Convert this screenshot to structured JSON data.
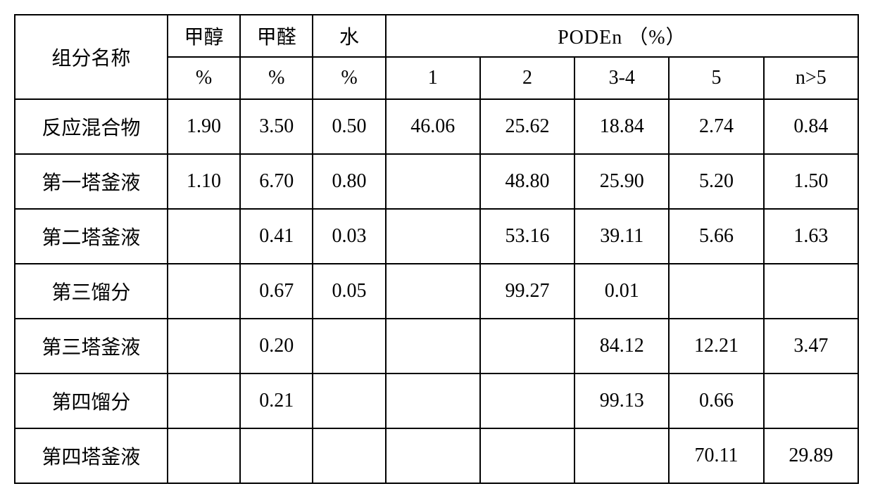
{
  "font_family": "SimSun",
  "border_color": "#000000",
  "background_color": "#ffffff",
  "text_color": "#000000",
  "header": {
    "name_label": "组分名称",
    "col1_top": "甲醇",
    "col2_top": "甲醛",
    "col3_top": "水",
    "poden_label": "PODEn   （%）",
    "col1_bot": "%",
    "col2_bot": "%",
    "col3_bot": "%",
    "pod_sub": [
      "1",
      "2",
      "3-4",
      "5",
      "n>5"
    ]
  },
  "rows": [
    {
      "name": "反应混合物",
      "c1": "1.90",
      "c2": "3.50",
      "c3": "0.50",
      "p1": "46.06",
      "p2": "25.62",
      "p3": "18.84",
      "p4": "2.74",
      "p5": "0.84"
    },
    {
      "name": "第一塔釜液",
      "c1": "1.10",
      "c2": "6.70",
      "c3": "0.80",
      "p1": "",
      "p2": "48.80",
      "p3": "25.90",
      "p4": "5.20",
      "p5": "1.50"
    },
    {
      "name": "第二塔釜液",
      "c1": "",
      "c2": "0.41",
      "c3": "0.03",
      "p1": "",
      "p2": "53.16",
      "p3": "39.11",
      "p4": "5.66",
      "p5": "1.63"
    },
    {
      "name": "第三馏分",
      "c1": "",
      "c2": "0.67",
      "c3": "0.05",
      "p1": "",
      "p2": "99.27",
      "p3": "0.01",
      "p4": "",
      "p5": ""
    },
    {
      "name": "第三塔釜液",
      "c1": "",
      "c2": "0.20",
      "c3": "",
      "p1": "",
      "p2": "",
      "p3": "84.12",
      "p4": "12.21",
      "p5": "3.47"
    },
    {
      "name": "第四馏分",
      "c1": "",
      "c2": "0.21",
      "c3": "",
      "p1": "",
      "p2": "",
      "p3": "99.13",
      "p4": "0.66",
      "p5": ""
    },
    {
      "name": "第四塔釜液",
      "c1": "",
      "c2": "",
      "c3": "",
      "p1": "",
      "p2": "",
      "p3": "",
      "p4": "70.11",
      "p5": "29.89"
    }
  ]
}
